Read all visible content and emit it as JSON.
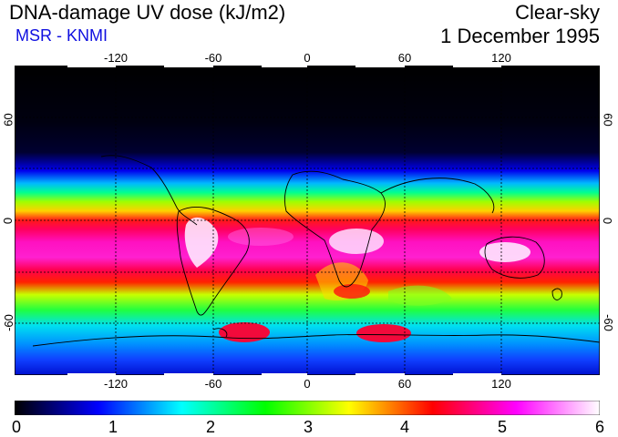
{
  "header": {
    "title": "DNA-damage UV dose (kJ/m2)",
    "subtitle": "MSR - KNMI",
    "sky_condition": "Clear-sky",
    "date": "1 December 1995"
  },
  "map": {
    "projection": "equirectangular",
    "lon_range": [
      -180,
      180
    ],
    "lat_range": [
      -90,
      90
    ],
    "lon_ticks": [
      "-120",
      "-60",
      "0",
      "60",
      "120"
    ],
    "lat_ticks": [
      "60",
      "0",
      "-60"
    ],
    "gridlines": "dashed",
    "variable": "DNA-damage UV dose",
    "units": "kJ/m2",
    "features": [
      "coastlines",
      "latitude bands",
      "southern subtropical maxima"
    ]
  },
  "colorbar": {
    "ticks": [
      "0",
      "1",
      "2",
      "3",
      "4",
      "5",
      "6"
    ],
    "range": [
      0,
      6
    ],
    "colors": [
      "#000000",
      "#0000ff",
      "#00ffff",
      "#00ff00",
      "#ffff00",
      "#ff0000",
      "#ff00ff",
      "#ffffff"
    ]
  }
}
